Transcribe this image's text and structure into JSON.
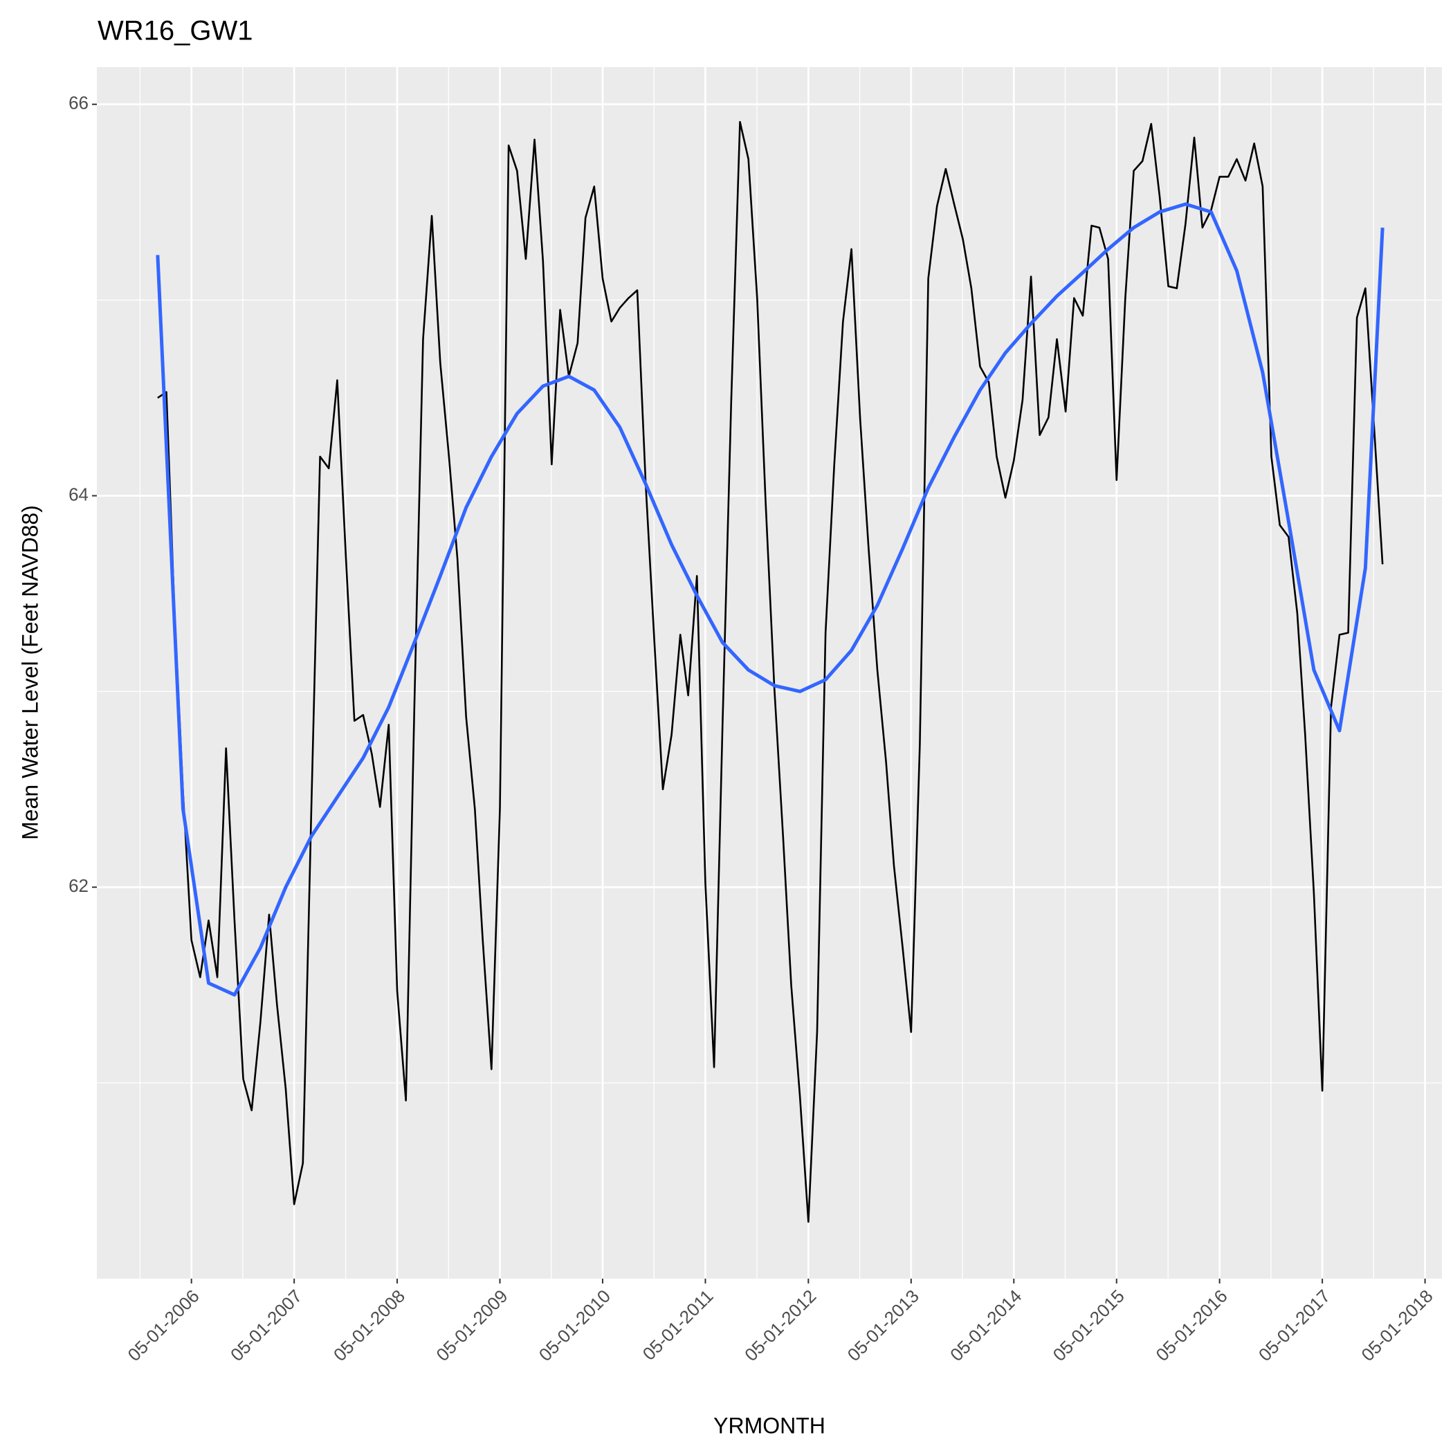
{
  "chart_data": {
    "type": "line",
    "title": "WR16_GW1",
    "x_label": "YRMONTH",
    "y_label": "Mean Water Level (Feet NAVD88)",
    "x": [
      "2006-01-01",
      "2006-02-01",
      "2006-03-01",
      "2006-04-01",
      "2006-05-01",
      "2006-06-01",
      "2006-07-01",
      "2006-08-01",
      "2006-09-01",
      "2006-10-01",
      "2006-11-01",
      "2006-12-01",
      "2007-01-01",
      "2007-02-01",
      "2007-03-01",
      "2007-04-01",
      "2007-05-01",
      "2007-06-01",
      "2007-07-01",
      "2007-08-01",
      "2007-09-01",
      "2007-10-01",
      "2007-11-01",
      "2007-12-01",
      "2008-01-01",
      "2008-02-01",
      "2008-03-01",
      "2008-04-01",
      "2008-05-01",
      "2008-06-01",
      "2008-07-01",
      "2008-08-01",
      "2008-09-01",
      "2008-10-01",
      "2008-11-01",
      "2008-12-01",
      "2009-01-01",
      "2009-02-01",
      "2009-03-01",
      "2009-04-01",
      "2009-05-01",
      "2009-06-01",
      "2009-07-01",
      "2009-08-01",
      "2009-09-01",
      "2009-10-01",
      "2009-11-01",
      "2009-12-01",
      "2010-01-01",
      "2010-02-01",
      "2010-03-01",
      "2010-04-01",
      "2010-05-01",
      "2010-06-01",
      "2010-07-01",
      "2010-08-01",
      "2010-09-01",
      "2010-10-01",
      "2010-11-01",
      "2010-12-01",
      "2011-01-01",
      "2011-02-01",
      "2011-03-01",
      "2011-04-01",
      "2011-05-01",
      "2011-06-01",
      "2011-07-01",
      "2011-08-01",
      "2011-09-01",
      "2011-10-01",
      "2011-11-01",
      "2011-12-01",
      "2012-01-01",
      "2012-02-01",
      "2012-03-01",
      "2012-04-01",
      "2012-05-01",
      "2012-06-01",
      "2012-07-01",
      "2012-08-01",
      "2012-09-01",
      "2012-10-01",
      "2012-11-01",
      "2012-12-01",
      "2013-01-01",
      "2013-02-01",
      "2013-03-01",
      "2013-04-01",
      "2013-05-01",
      "2013-06-01",
      "2013-07-01",
      "2013-08-01",
      "2013-09-01",
      "2013-10-01",
      "2013-11-01",
      "2013-12-01",
      "2014-01-01",
      "2014-02-01",
      "2014-03-01",
      "2014-04-01",
      "2014-05-01",
      "2014-06-01",
      "2014-07-01",
      "2014-08-01",
      "2014-09-01",
      "2014-10-01",
      "2014-11-01",
      "2014-12-01",
      "2015-01-01",
      "2015-02-01",
      "2015-03-01",
      "2015-04-01",
      "2015-05-01",
      "2015-06-01",
      "2015-07-01",
      "2015-08-01",
      "2015-09-01",
      "2015-10-01",
      "2015-11-01",
      "2015-12-01",
      "2016-01-01",
      "2016-02-01",
      "2016-03-01",
      "2016-04-01",
      "2016-05-01",
      "2016-06-01",
      "2016-07-01",
      "2016-08-01",
      "2016-09-01",
      "2016-10-01",
      "2016-11-01",
      "2016-12-01",
      "2017-01-01",
      "2017-02-01",
      "2017-03-01",
      "2017-04-01",
      "2017-05-01",
      "2017-06-01",
      "2017-07-01",
      "2017-08-01",
      "2017-09-01",
      "2017-10-01",
      "2017-11-01",
      "2017-12-01"
    ],
    "series": [
      {
        "color": "#000000",
        "values": [
          64.5,
          64.53,
          63.44,
          62.49,
          61.73,
          61.54,
          61.83,
          61.54,
          62.71,
          61.83,
          61.02,
          60.86,
          61.31,
          61.86,
          61.4,
          60.97,
          60.38,
          60.59,
          62.4,
          64.2,
          64.14,
          64.59,
          63.68,
          62.85,
          62.88,
          62.68,
          62.41,
          62.83,
          61.47,
          60.91,
          62.92,
          64.8,
          65.43,
          64.68,
          64.2,
          63.68,
          62.87,
          62.4,
          61.73,
          61.07,
          62.4,
          65.79,
          65.66,
          65.21,
          65.82,
          65.2,
          64.16,
          64.95,
          64.61,
          64.78,
          65.42,
          65.58,
          65.11,
          64.89,
          64.96,
          65.01,
          65.05,
          64.06,
          63.25,
          62.5,
          62.78,
          63.29,
          62.98,
          63.59,
          62.02,
          61.08,
          62.83,
          64.49,
          65.91,
          65.72,
          65.01,
          63.97,
          63.02,
          62.26,
          61.5,
          60.93,
          60.29,
          61.26,
          63.3,
          64.16,
          64.89,
          65.26,
          64.39,
          63.73,
          63.11,
          62.64,
          62.11,
          61.69,
          61.26,
          62.73,
          65.11,
          65.48,
          65.67,
          65.49,
          65.31,
          65.06,
          64.66,
          64.58,
          64.2,
          63.99,
          64.18,
          64.49,
          65.12,
          64.31,
          64.4,
          64.8,
          64.43,
          65.01,
          64.92,
          65.38,
          65.37,
          65.21,
          64.08,
          65.01,
          65.66,
          65.71,
          65.9,
          65.53,
          65.07,
          65.06,
          65.39,
          65.83,
          65.37,
          65.46,
          65.63,
          65.63,
          65.72,
          65.61,
          65.8,
          65.58,
          64.2,
          63.85,
          63.79,
          63.4,
          62.78,
          61.97,
          60.96,
          62.92,
          63.29,
          63.3,
          64.91,
          65.06,
          64.35,
          63.65
        ]
      },
      {
        "color": "#3366FF",
        "x": [
          "2006-01-01",
          "2006-04-01",
          "2006-07-01",
          "2006-10-01",
          "2007-01-01",
          "2007-04-01",
          "2007-07-01",
          "2007-10-01",
          "2008-01-01",
          "2008-04-01",
          "2008-07-01",
          "2008-10-01",
          "2009-01-01",
          "2009-04-01",
          "2009-07-01",
          "2009-10-01",
          "2010-01-01",
          "2010-04-01",
          "2010-07-01",
          "2010-10-01",
          "2011-01-01",
          "2011-04-01",
          "2011-07-01",
          "2011-10-01",
          "2012-01-01",
          "2012-04-01",
          "2012-07-01",
          "2012-10-01",
          "2013-01-01",
          "2013-04-01",
          "2013-07-01",
          "2013-10-01",
          "2014-01-01",
          "2014-04-01",
          "2014-07-01",
          "2014-10-01",
          "2015-01-01",
          "2015-04-01",
          "2015-07-01",
          "2015-10-01",
          "2016-01-01",
          "2016-04-01",
          "2016-07-01",
          "2016-10-01",
          "2017-01-01",
          "2017-04-01",
          "2017-07-01",
          "2017-10-01",
          "2017-12-01"
        ],
        "values": [
          65.23,
          62.4,
          61.51,
          61.45,
          61.69,
          62.0,
          62.26,
          62.46,
          62.66,
          62.92,
          63.25,
          63.59,
          63.94,
          64.2,
          64.42,
          64.56,
          64.61,
          64.54,
          64.35,
          64.06,
          63.75,
          63.49,
          63.25,
          63.11,
          63.03,
          63.0,
          63.06,
          63.21,
          63.44,
          63.73,
          64.04,
          64.3,
          64.54,
          64.73,
          64.88,
          65.02,
          65.14,
          65.26,
          65.37,
          65.45,
          65.49,
          65.45,
          65.15,
          64.63,
          63.87,
          63.11,
          62.8,
          63.63,
          65.37
        ]
      }
    ],
    "xlim": [
      "2005-05-30",
      "2018-06-30"
    ],
    "xticks": [
      {
        "value": "2006-05-01",
        "label": "05-01-2006"
      },
      {
        "value": "2007-05-01",
        "label": "05-01-2007"
      },
      {
        "value": "2008-05-01",
        "label": "05-01-2008"
      },
      {
        "value": "2009-05-01",
        "label": "05-01-2009"
      },
      {
        "value": "2010-05-01",
        "label": "05-01-2010"
      },
      {
        "value": "2011-05-01",
        "label": "05-01-2011"
      },
      {
        "value": "2012-05-01",
        "label": "05-01-2012"
      },
      {
        "value": "2013-05-01",
        "label": "05-01-2013"
      },
      {
        "value": "2014-05-01",
        "label": "05-01-2014"
      },
      {
        "value": "2015-05-01",
        "label": "05-01-2015"
      },
      {
        "value": "2016-05-01",
        "label": "05-01-2016"
      },
      {
        "value": "2017-05-01",
        "label": "05-01-2017"
      },
      {
        "value": "2018-05-01",
        "label": "05-01-2018"
      }
    ],
    "ylim": [
      60.0,
      66.19
    ],
    "yticks": [
      62,
      64,
      66
    ],
    "grid": true
  }
}
